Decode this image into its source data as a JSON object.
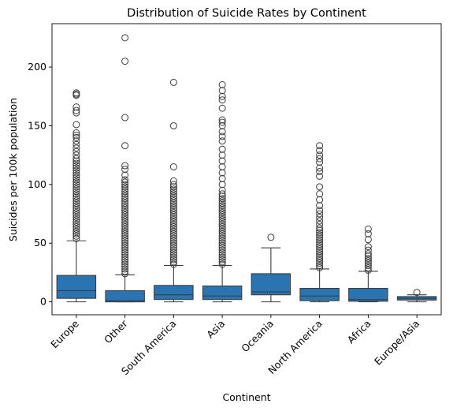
{
  "chart_data": {
    "type": "box",
    "title": "Distribution of Suicide Rates by Continent",
    "xlabel": "Continent",
    "ylabel": "Suicides per 100k population",
    "ylim": [
      -11,
      237
    ],
    "yticks": [
      0,
      50,
      100,
      150,
      200
    ],
    "grid": false,
    "colors": {
      "box": "#2b74b2",
      "line": "#3d3d3d"
    },
    "categories": [
      "Europe",
      "Other",
      "South America",
      "Asia",
      "Oceania",
      "North America",
      "Africa",
      "Europe/Asia"
    ],
    "boxes": [
      {
        "category": "Europe",
        "whisker_low": 0,
        "q1": 3,
        "median": 9.5,
        "q3": 22.5,
        "whisker_high": 52,
        "outliers": [
          54,
          56,
          58,
          60,
          62,
          64,
          66,
          68,
          70,
          72,
          74,
          76,
          78,
          80,
          82,
          84,
          86,
          88,
          90,
          92,
          94,
          96,
          98,
          100,
          102,
          104,
          106,
          108,
          110,
          112,
          114,
          116,
          118,
          120,
          122,
          125,
          128,
          131,
          134,
          137,
          140,
          142,
          144,
          151,
          161,
          163,
          166,
          176,
          177,
          178
        ]
      },
      {
        "category": "Other",
        "whisker_low": 0,
        "q1": 0,
        "median": 1,
        "q3": 9.5,
        "whisker_high": 23,
        "outliers": [
          24,
          26,
          28,
          30,
          32,
          34,
          36,
          38,
          40,
          42,
          44,
          46,
          48,
          50,
          52,
          54,
          56,
          58,
          60,
          62,
          64,
          66,
          68,
          70,
          72,
          74,
          76,
          78,
          80,
          82,
          84,
          86,
          88,
          90,
          92,
          94,
          96,
          98,
          100,
          102,
          104,
          108,
          113,
          116,
          133,
          157,
          205,
          225
        ]
      },
      {
        "category": "South America",
        "whisker_low": 0,
        "q1": 2,
        "median": 6,
        "q3": 14,
        "whisker_high": 31,
        "outliers": [
          32,
          34,
          36,
          38,
          40,
          42,
          44,
          46,
          48,
          50,
          52,
          54,
          56,
          58,
          60,
          62,
          64,
          66,
          68,
          70,
          72,
          74,
          76,
          78,
          80,
          82,
          84,
          86,
          88,
          90,
          92,
          94,
          96,
          98,
          100,
          103,
          115,
          150,
          187
        ]
      },
      {
        "category": "Asia",
        "whisker_low": 0,
        "q1": 2,
        "median": 5,
        "q3": 13.5,
        "whisker_high": 31,
        "outliers": [
          32,
          34,
          36,
          38,
          40,
          42,
          44,
          46,
          48,
          50,
          52,
          54,
          56,
          58,
          60,
          62,
          64,
          66,
          68,
          70,
          72,
          74,
          76,
          78,
          80,
          82,
          84,
          86,
          88,
          90,
          92,
          95,
          100,
          105,
          110,
          115,
          120,
          125,
          130,
          137,
          141,
          145,
          150,
          153,
          155,
          165,
          172,
          175,
          180,
          185
        ]
      },
      {
        "category": "Oceania",
        "whisker_low": 0,
        "q1": 6,
        "median": 8.5,
        "q3": 24,
        "whisker_high": 46,
        "outliers": [
          55
        ]
      },
      {
        "category": "North America",
        "whisker_low": 0,
        "q1": 1,
        "median": 5,
        "q3": 11.5,
        "whisker_high": 28,
        "outliers": [
          29,
          31,
          33,
          35,
          37,
          39,
          41,
          43,
          45,
          47,
          49,
          51,
          53,
          55,
          57,
          59,
          61,
          63,
          66,
          69,
          72,
          75,
          78,
          82,
          87,
          92,
          98,
          107,
          111,
          114,
          119,
          122,
          125,
          129,
          133
        ]
      },
      {
        "category": "Africa",
        "whisker_low": 0,
        "q1": 0.5,
        "median": 2,
        "q3": 11.5,
        "whisker_high": 26,
        "outliers": [
          27,
          29,
          31,
          33,
          35,
          37,
          39,
          41,
          44,
          47,
          53,
          58,
          62
        ]
      },
      {
        "category": "Europe/Asia",
        "whisker_low": 0,
        "q1": 1.5,
        "median": 3,
        "q3": 4.5,
        "whisker_high": 6,
        "outliers": [
          8
        ]
      }
    ]
  }
}
